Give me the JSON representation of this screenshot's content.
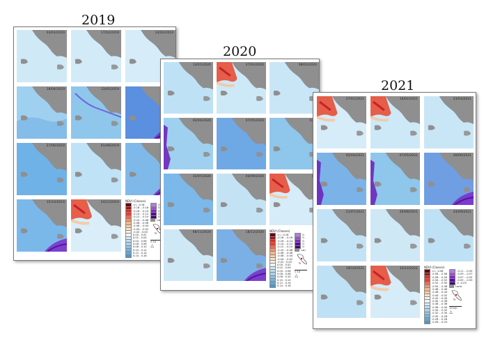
{
  "years": [
    {
      "title": "2019",
      "dates": [
        "03/01/2019",
        "17/02/2019",
        "24/02/2019",
        "18/04/2019",
        "13/05/2019",
        "07/0",
        "27/06/2019",
        "01/08/2019",
        "09/",
        "15/10/2019",
        "24/12/2019",
        ""
      ],
      "legend_col1": [
        "<= -0.18",
        "-0.18 - -0.16",
        "-0.16 - -0.14",
        "-0.14 - -0.12",
        "-0.12 - -0.10",
        "-0.10 - -0.08",
        "-0.08 - -0.06",
        "-0.06 - -0.04",
        "-0.04 - -0.02",
        "-0.02 - 0.00",
        "0.00 - 0.02",
        "0.02 - 0.04",
        "0.04 - 0.06",
        "0.06 - 0.08",
        "0.08 - 0.10",
        "0.10 - 0.12",
        "0.12 - 0.14",
        "0.14 - 0.16"
      ],
      "legend_col2": [
        "0.",
        "0.",
        "0.",
        "0.",
        "0."
      ],
      "land_label": "Lan",
      "scale": "0    10"
    },
    {
      "title": "2020",
      "dates": [
        "13/01/2020",
        "27/02/2020",
        "08/03/2020",
        "02/04/2020",
        "07/05/2020",
        "03/0",
        "31/07/2020",
        "04/09/2020",
        "04/",
        "08/11/2020",
        "18/12/2020",
        ""
      ],
      "legend_col1": [
        "<= -0.18",
        "-0.18 - -0.16",
        "-0.16 - -0.14",
        "-0.14 - -0.12",
        "-0.12 - -0.10",
        "-0.10 - -0.08",
        "-0.08 - -0.06",
        "-0.06 - -0.04",
        "-0.04 - -0.02",
        "-0.02 - 0.00",
        "0.00 - 0.02",
        "0.02 - 0.04",
        "0.04 - 0.06",
        "0.06 - 0.08",
        "0.08 - 0.10",
        "0.10 - 0.12",
        "0.12 - 0.14",
        "0.14 - 0.16"
      ],
      "legend_col2": [
        "0.",
        "0.",
        "0.",
        "0.",
        "0."
      ],
      "land_label": "Lan",
      "scale": "0    10"
    },
    {
      "title": "2021",
      "dates": [
        "27/01/2021",
        "16/02/2021",
        "23/03/2021",
        "02/04/2021",
        "07/05/2021",
        "26/06/2021",
        "21/07/2021",
        "20/08/2021",
        "24/09/2021",
        "19/10/2021",
        "13/12/2021",
        ""
      ],
      "legend_col1": [
        "<= -0.58",
        "-0.58 - -0.56",
        "-0.56 - -0.54",
        "-0.54 - -0.52",
        "-0.52 - -0.50",
        "-0.50 - -0.48",
        "-0.48 - -0.46",
        "-0.46 - -0.44",
        "-0.44 - -0.42",
        "-0.42 - -0.40",
        "-0.40 - -0.38",
        "-0.38 - -0.36",
        "-0.36 - -0.34",
        "-0.34 - -0.32",
        "-0.32 - -0.30",
        "-0.30 - -0.28",
        "-0.28 - -0.26",
        "-0.26 - -0.24"
      ],
      "legend_col2": [
        "-0.11 - -0.09",
        "-0.09 - -0.07",
        "-0.07 - -0.05",
        "-0.05 - -0.03",
        "> -0.03"
      ],
      "land_label": "Land",
      "scale": "10 km"
    }
  ],
  "legend_title": "NDVI (Classes)",
  "colors": {
    "legend_ramp": [
      "#67000d",
      "#a50f15",
      "#d7301f",
      "#ef3b2c",
      "#f16b4f",
      "#f4946a",
      "#f7b58b",
      "#f9cfa8",
      "#fbe3c6",
      "#fdf2e2",
      "#eef5f8",
      "#d6ebf5",
      "#bfdff1",
      "#a7d2ec",
      "#8fc5e6",
      "#77b7df",
      "#5fa8d7",
      "#4a98ce"
    ],
    "legend_ramp2": [
      "#b07de0",
      "#9b4fd6",
      "#7e25c4",
      "#5d0aa0",
      "#3d006d"
    ],
    "land": "#8f8f8f"
  }
}
